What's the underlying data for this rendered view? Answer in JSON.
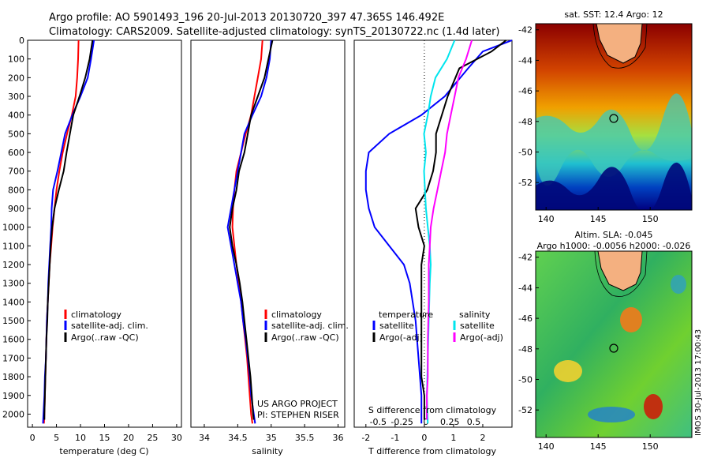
{
  "header": {
    "line1": "Argo profile: AO 5901493_196 20-Jul-2013 20130720_397 47.365S 146.492E",
    "line2": "Climatology: CARS2009. Satellite-adjusted climatology: synTS_20130722.nc (1.4d later)"
  },
  "side_stamp": "IMOS 30-Jul-2013 17:00:43",
  "colors": {
    "climatology": "#ff0000",
    "satellite": "#0000ff",
    "argo": "#000000",
    "salinity_sat": "#00e5ee",
    "salinity_argo": "#ff00ff"
  },
  "chart_data": [
    {
      "type": "line",
      "id": "temperature",
      "xlabel": "temperature (deg C)",
      "ylabel": "",
      "xlim": [
        -1,
        31
      ],
      "ylim": [
        2070,
        0
      ],
      "xticks": [
        "0",
        "5",
        "10",
        "15",
        "20",
        "25",
        "30"
      ],
      "yticks": [
        "0",
        "100",
        "200",
        "300",
        "400",
        "500",
        "600",
        "700",
        "800",
        "900",
        "1000",
        "1100",
        "1200",
        "1300",
        "1400",
        "1500",
        "1600",
        "1700",
        "1800",
        "1900",
        "2000"
      ],
      "legend": [
        "climatology",
        "satellite-adj. clim.",
        "Argo(..raw -QC)"
      ],
      "series": [
        {
          "name": "climatology",
          "color": "#ff0000",
          "points": [
            [
              9.6,
              0
            ],
            [
              9.5,
              100
            ],
            [
              9.3,
              200
            ],
            [
              9.0,
              300
            ],
            [
              8.2,
              400
            ],
            [
              7.2,
              500
            ],
            [
              6.3,
              600
            ],
            [
              5.6,
              700
            ],
            [
              5.0,
              800
            ],
            [
              4.6,
              900
            ],
            [
              4.2,
              1000
            ],
            [
              3.9,
              1100
            ],
            [
              3.6,
              1200
            ],
            [
              3.4,
              1300
            ],
            [
              3.2,
              1400
            ],
            [
              3.0,
              1500
            ],
            [
              2.9,
              1600
            ],
            [
              2.8,
              1700
            ],
            [
              2.7,
              1800
            ],
            [
              2.6,
              1900
            ],
            [
              2.5,
              2000
            ],
            [
              2.4,
              2050
            ]
          ]
        },
        {
          "name": "satellite-adj. clim.",
          "color": "#0000ff",
          "points": [
            [
              12.8,
              0
            ],
            [
              12.2,
              100
            ],
            [
              11.5,
              200
            ],
            [
              10.0,
              300
            ],
            [
              8.3,
              400
            ],
            [
              6.8,
              500
            ],
            [
              6.0,
              600
            ],
            [
              5.2,
              700
            ],
            [
              4.3,
              800
            ],
            [
              4.0,
              900
            ],
            [
              3.9,
              1000
            ],
            [
              3.7,
              1100
            ],
            [
              3.5,
              1200
            ],
            [
              3.3,
              1300
            ],
            [
              3.2,
              1400
            ],
            [
              3.0,
              1500
            ],
            [
              2.9,
              1600
            ],
            [
              2.8,
              1700
            ],
            [
              2.6,
              1800
            ],
            [
              2.5,
              1900
            ],
            [
              2.3,
              2000
            ],
            [
              2.2,
              2050
            ]
          ]
        },
        {
          "name": "Argo(..raw -QC)",
          "color": "#000000",
          "points": [
            [
              12.5,
              0
            ],
            [
              11.9,
              100
            ],
            [
              11.0,
              200
            ],
            [
              9.8,
              300
            ],
            [
              8.5,
              400
            ],
            [
              7.8,
              500
            ],
            [
              7.1,
              600
            ],
            [
              6.5,
              700
            ],
            [
              5.5,
              800
            ],
            [
              4.6,
              900
            ],
            [
              4.1,
              1000
            ],
            [
              3.8,
              1100
            ],
            [
              3.6,
              1200
            ],
            [
              3.4,
              1300
            ],
            [
              3.2,
              1400
            ],
            [
              3.1,
              1500
            ],
            [
              2.9,
              1600
            ],
            [
              2.8,
              1700
            ],
            [
              2.7,
              1800
            ],
            [
              2.6,
              1900
            ],
            [
              2.5,
              2000
            ],
            [
              2.5,
              2030
            ]
          ]
        }
      ]
    },
    {
      "type": "line",
      "id": "salinity",
      "xlabel": "salinity",
      "ylabel": "",
      "xlim": [
        33.8,
        36.1
      ],
      "ylim": [
        2070,
        0
      ],
      "xticks": [
        "34",
        "34.5",
        "35",
        "35.5",
        "36"
      ],
      "legend": [
        "climatology",
        "satellite-adj. clim.",
        "Argo(..raw -QC)"
      ],
      "credit": [
        "US ARGO PROJECT",
        "PI: STEPHEN RISER"
      ],
      "series": [
        {
          "name": "climatology",
          "color": "#ff0000",
          "points": [
            [
              34.87,
              0
            ],
            [
              34.85,
              100
            ],
            [
              34.8,
              200
            ],
            [
              34.75,
              300
            ],
            [
              34.7,
              400
            ],
            [
              34.62,
              500
            ],
            [
              34.55,
              600
            ],
            [
              34.48,
              700
            ],
            [
              34.45,
              800
            ],
            [
              34.43,
              900
            ],
            [
              34.42,
              1000
            ],
            [
              34.45,
              1100
            ],
            [
              34.48,
              1200
            ],
            [
              34.52,
              1300
            ],
            [
              34.55,
              1400
            ],
            [
              34.58,
              1500
            ],
            [
              34.61,
              1600
            ],
            [
              34.64,
              1700
            ],
            [
              34.66,
              1800
            ],
            [
              34.68,
              1900
            ],
            [
              34.7,
              2000
            ],
            [
              34.72,
              2050
            ]
          ]
        },
        {
          "name": "satellite-adj. clim.",
          "color": "#0000ff",
          "points": [
            [
              35.0,
              0
            ],
            [
              34.98,
              100
            ],
            [
              34.93,
              200
            ],
            [
              34.85,
              300
            ],
            [
              34.72,
              400
            ],
            [
              34.6,
              500
            ],
            [
              34.55,
              600
            ],
            [
              34.5,
              700
            ],
            [
              34.45,
              800
            ],
            [
              34.4,
              900
            ],
            [
              34.35,
              1000
            ],
            [
              34.4,
              1100
            ],
            [
              34.45,
              1200
            ],
            [
              34.5,
              1300
            ],
            [
              34.55,
              1400
            ],
            [
              34.58,
              1500
            ],
            [
              34.62,
              1600
            ],
            [
              34.65,
              1700
            ],
            [
              34.68,
              1800
            ],
            [
              34.7,
              1900
            ],
            [
              34.74,
              2000
            ],
            [
              34.76,
              2050
            ]
          ]
        },
        {
          "name": "Argo(..raw -QC)",
          "color": "#000000",
          "points": [
            [
              35.02,
              0
            ],
            [
              34.96,
              100
            ],
            [
              34.9,
              200
            ],
            [
              34.8,
              300
            ],
            [
              34.7,
              400
            ],
            [
              34.65,
              500
            ],
            [
              34.6,
              600
            ],
            [
              34.52,
              700
            ],
            [
              34.48,
              800
            ],
            [
              34.42,
              900
            ],
            [
              34.38,
              1000
            ],
            [
              34.42,
              1100
            ],
            [
              34.48,
              1200
            ],
            [
              34.53,
              1300
            ],
            [
              34.57,
              1400
            ],
            [
              34.6,
              1500
            ],
            [
              34.63,
              1600
            ],
            [
              34.66,
              1700
            ],
            [
              34.69,
              1800
            ],
            [
              34.71,
              1900
            ],
            [
              34.73,
              2000
            ],
            [
              34.74,
              2030
            ]
          ]
        }
      ]
    },
    {
      "type": "line",
      "id": "difference",
      "xlabel": "T difference from climatology",
      "xlabel_top": "S difference from climatology",
      "xlim_T": [
        -2.4,
        3.0
      ],
      "xlim_S": [
        -0.75,
        0.9
      ],
      "ylim": [
        2070,
        0
      ],
      "xticks_T": [
        "-2",
        "-1",
        "0",
        "1",
        "2"
      ],
      "xticks_S": [
        "-0.5",
        "-0.25",
        "0",
        "0.25",
        "0.5"
      ],
      "legend_left_title": "temperature",
      "legend_right_title": "salinity",
      "legend": [
        "satellite",
        "Argo(-adj)",
        "satellite",
        "Argo(-adj)"
      ],
      "series": [
        {
          "name": "T satellite",
          "color": "#0000ff",
          "axis": "T",
          "points": [
            [
              3.0,
              0
            ],
            [
              2.0,
              60
            ],
            [
              1.5,
              150
            ],
            [
              0.7,
              300
            ],
            [
              -0.1,
              400
            ],
            [
              -1.2,
              500
            ],
            [
              -1.9,
              600
            ],
            [
              -2.0,
              700
            ],
            [
              -2.0,
              800
            ],
            [
              -1.9,
              900
            ],
            [
              -1.7,
              1000
            ],
            [
              -1.2,
              1100
            ],
            [
              -0.7,
              1200
            ],
            [
              -0.5,
              1300
            ],
            [
              -0.3,
              1500
            ],
            [
              -0.2,
              1700
            ],
            [
              -0.1,
              1900
            ],
            [
              -0.1,
              2050
            ]
          ]
        },
        {
          "name": "T Argo(-adj)",
          "color": "#000000",
          "axis": "T",
          "points": [
            [
              2.8,
              0
            ],
            [
              2.3,
              60
            ],
            [
              1.2,
              150
            ],
            [
              0.8,
              300
            ],
            [
              0.6,
              400
            ],
            [
              0.4,
              500
            ],
            [
              0.4,
              600
            ],
            [
              0.3,
              700
            ],
            [
              0.1,
              800
            ],
            [
              -0.3,
              900
            ],
            [
              -0.2,
              1000
            ],
            [
              0.0,
              1100
            ],
            [
              -0.1,
              1200
            ],
            [
              -0.1,
              1400
            ],
            [
              -0.1,
              1600
            ],
            [
              -0.1,
              1800
            ],
            [
              0.0,
              1900
            ],
            [
              0.0,
              2030
            ]
          ]
        },
        {
          "name": "S satellite",
          "color": "#00e5ee",
          "axis": "S",
          "points": [
            [
              0.3,
              0
            ],
            [
              0.22,
              100
            ],
            [
              0.1,
              200
            ],
            [
              0.05,
              300
            ],
            [
              0.02,
              400
            ],
            [
              -0.02,
              500
            ],
            [
              0.0,
              600
            ],
            [
              -0.02,
              700
            ],
            [
              -0.01,
              800
            ],
            [
              0.0,
              900
            ],
            [
              0.02,
              1000
            ],
            [
              0.04,
              1100
            ],
            [
              0.05,
              1200
            ],
            [
              0.04,
              1300
            ],
            [
              0.03,
              1500
            ],
            [
              0.02,
              1700
            ],
            [
              0.01,
              1900
            ],
            [
              0.02,
              2050
            ]
          ]
        },
        {
          "name": "S Argo(-adj)",
          "color": "#ff00ff",
          "axis": "S",
          "points": [
            [
              0.48,
              0
            ],
            [
              0.42,
              100
            ],
            [
              0.34,
              200
            ],
            [
              0.3,
              300
            ],
            [
              0.26,
              400
            ],
            [
              0.22,
              500
            ],
            [
              0.2,
              600
            ],
            [
              0.16,
              700
            ],
            [
              0.12,
              800
            ],
            [
              0.08,
              900
            ],
            [
              0.05,
              1000
            ],
            [
              0.04,
              1100
            ],
            [
              0.03,
              1200
            ],
            [
              0.03,
              1400
            ],
            [
              0.02,
              1600
            ],
            [
              0.02,
              1800
            ],
            [
              0.01,
              1900
            ],
            [
              0.01,
              2030
            ]
          ]
        }
      ]
    },
    {
      "type": "heatmap",
      "id": "sst_map",
      "title": "sat. SST: 12.4 Argo: 12",
      "xticks": [
        "140",
        "145",
        "150"
      ],
      "yticks": [
        "-42",
        "-44",
        "-46",
        "-48",
        "-50",
        "-52"
      ],
      "xlim": [
        139,
        154
      ],
      "ylim": [
        -53.8,
        -41.6
      ],
      "marker": [
        146.492,
        -47.365
      ]
    },
    {
      "type": "heatmap",
      "id": "sla_map",
      "title_line1": "Altim. SLA: -0.045",
      "title_line2": "Argo h1000: -0.0056 h2000: -0.026",
      "xticks": [
        "140",
        "145",
        "150"
      ],
      "yticks": [
        "-42",
        "-44",
        "-46",
        "-48",
        "-50",
        "-52"
      ],
      "xlim": [
        139,
        154
      ],
      "ylim": [
        -53.8,
        -41.6
      ],
      "marker": [
        146.492,
        -47.365
      ]
    }
  ]
}
